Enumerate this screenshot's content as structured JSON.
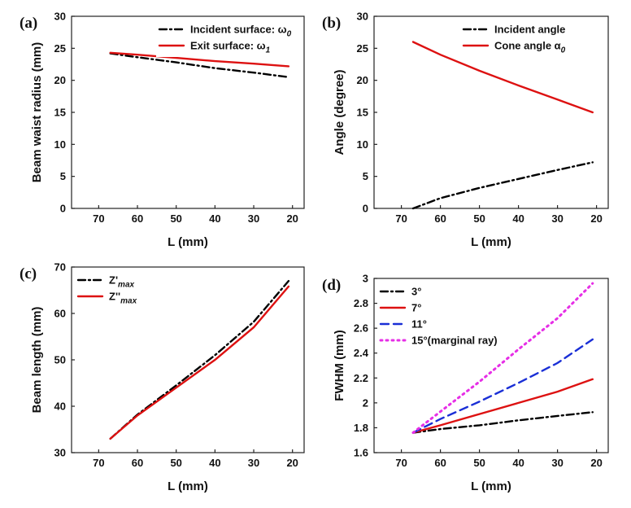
{
  "figure": {
    "background": "#ffffff"
  },
  "chart_data": [
    {
      "panel": "(a)",
      "type": "line",
      "xlabel": "L (mm)",
      "ylabel": "Beam waist radius (mm)",
      "xlim": [
        77,
        17
      ],
      "ylim": [
        0,
        30
      ],
      "xticks": [
        70,
        60,
        50,
        40,
        30,
        20
      ],
      "yticks": [
        0,
        5,
        10,
        15,
        20,
        25,
        30
      ],
      "xtick_labels": [
        "70",
        "60",
        "50",
        "40",
        "30",
        "20"
      ],
      "ytick_labels": [
        "0",
        "5",
        "10",
        "15",
        "20",
        "25",
        "30"
      ],
      "legend_position": "top-right",
      "series": [
        {
          "name": "Incident surface: ω₀",
          "label_main": "Incident surface: ω",
          "label_sub": "0",
          "color": "#000000",
          "dash": "dashdot",
          "x": [
            67,
            60,
            50,
            40,
            30,
            21
          ],
          "y": [
            24.2,
            23.6,
            22.8,
            21.9,
            21.2,
            20.5
          ]
        },
        {
          "name": "Exit surface: ω₁",
          "label_main": "Exit surface: ω",
          "label_sub": "1",
          "color": "#dd1111",
          "dash": "solid",
          "x": [
            67,
            60,
            50,
            40,
            30,
            21
          ],
          "y": [
            24.3,
            24.0,
            23.5,
            23.0,
            22.6,
            22.2
          ]
        }
      ]
    },
    {
      "panel": "(b)",
      "type": "line",
      "xlabel": "L (mm)",
      "ylabel": "Angle (degree)",
      "xlim": [
        77,
        17
      ],
      "ylim": [
        0,
        30
      ],
      "xticks": [
        70,
        60,
        50,
        40,
        30,
        20
      ],
      "yticks": [
        0,
        5,
        10,
        15,
        20,
        25,
        30
      ],
      "xtick_labels": [
        "70",
        "60",
        "50",
        "40",
        "30",
        "20"
      ],
      "ytick_labels": [
        "0",
        "5",
        "10",
        "15",
        "20",
        "25",
        "30"
      ],
      "legend_position": "top-right",
      "series": [
        {
          "name": "Incident angle",
          "label_main": "Incident angle",
          "label_sub": "",
          "color": "#000000",
          "dash": "dashdot",
          "x": [
            67,
            60,
            50,
            40,
            30,
            21
          ],
          "y": [
            0,
            1.6,
            3.2,
            4.6,
            6.0,
            7.2
          ]
        },
        {
          "name": "Cone angle α₀",
          "label_main": "Cone angle α",
          "label_sub": "0",
          "color": "#dd1111",
          "dash": "solid",
          "x": [
            67,
            60,
            50,
            40,
            30,
            21
          ],
          "y": [
            26.0,
            24.0,
            21.5,
            19.2,
            17.0,
            15.0
          ]
        }
      ]
    },
    {
      "panel": "(c)",
      "type": "line",
      "xlabel": "L (mm)",
      "ylabel": "Beam length (mm)",
      "xlim": [
        77,
        17
      ],
      "ylim": [
        30,
        70
      ],
      "xticks": [
        70,
        60,
        50,
        40,
        30,
        20
      ],
      "yticks": [
        30,
        40,
        50,
        60,
        70
      ],
      "xtick_labels": [
        "70",
        "60",
        "50",
        "40",
        "30",
        "20"
      ],
      "ytick_labels": [
        "30",
        "40",
        "50",
        "60",
        "70"
      ],
      "legend_position": "top-left",
      "series": [
        {
          "name": "Z'max",
          "label_main": "Z'",
          "label_sub": "max",
          "color": "#000000",
          "dash": "dashdot",
          "x": [
            67,
            60,
            50,
            40,
            30,
            21
          ],
          "y": [
            33.0,
            38.2,
            44.5,
            51.0,
            58.2,
            67.0
          ]
        },
        {
          "name": "Z''max",
          "label_main": "Z''",
          "label_sub": "max",
          "color": "#dd1111",
          "dash": "solid",
          "x": [
            67,
            60,
            50,
            40,
            30,
            21
          ],
          "y": [
            33.0,
            38.0,
            44.0,
            50.0,
            57.0,
            65.8
          ]
        }
      ]
    },
    {
      "panel": "(d)",
      "type": "line",
      "xlabel": "L (mm)",
      "ylabel": "FWHM (mm)",
      "xlim": [
        77,
        17
      ],
      "ylim": [
        1.6,
        3.0
      ],
      "xticks": [
        70,
        60,
        50,
        40,
        30,
        20
      ],
      "yticks": [
        1.6,
        1.8,
        2.0,
        2.2,
        2.4,
        2.6,
        2.8,
        3.0
      ],
      "xtick_labels": [
        "70",
        "60",
        "50",
        "40",
        "30",
        "20"
      ],
      "ytick_labels": [
        "1.6",
        "1.8",
        "2",
        "2.2",
        "2.4",
        "2.6",
        "2.8",
        "3"
      ],
      "legend_position": "top-left",
      "series": [
        {
          "name": "3°",
          "label_main": "3°",
          "label_sub": "",
          "color": "#000000",
          "dash": "dashdot",
          "x": [
            67,
            60,
            50,
            40,
            30,
            21
          ],
          "y": [
            1.76,
            1.79,
            1.82,
            1.86,
            1.895,
            1.925
          ]
        },
        {
          "name": "7°",
          "label_main": "7°",
          "label_sub": "",
          "color": "#dd1111",
          "dash": "solid",
          "x": [
            67,
            60,
            50,
            40,
            30,
            21
          ],
          "y": [
            1.76,
            1.82,
            1.91,
            2.0,
            2.09,
            2.19
          ]
        },
        {
          "name": "11°",
          "label_main": "11°",
          "label_sub": "",
          "color": "#1a2fd6",
          "dash": "dashed",
          "x": [
            67,
            60,
            50,
            40,
            30,
            21
          ],
          "y": [
            1.76,
            1.87,
            2.01,
            2.16,
            2.32,
            2.51
          ]
        },
        {
          "name": "15°(marginal ray)",
          "label_main": "15°(marginal ray)",
          "label_sub": "",
          "color": "#e62ee6",
          "dash": "dotted",
          "x": [
            67,
            60,
            50,
            40,
            30,
            21
          ],
          "y": [
            1.76,
            1.93,
            2.17,
            2.43,
            2.68,
            2.96
          ]
        }
      ]
    }
  ]
}
